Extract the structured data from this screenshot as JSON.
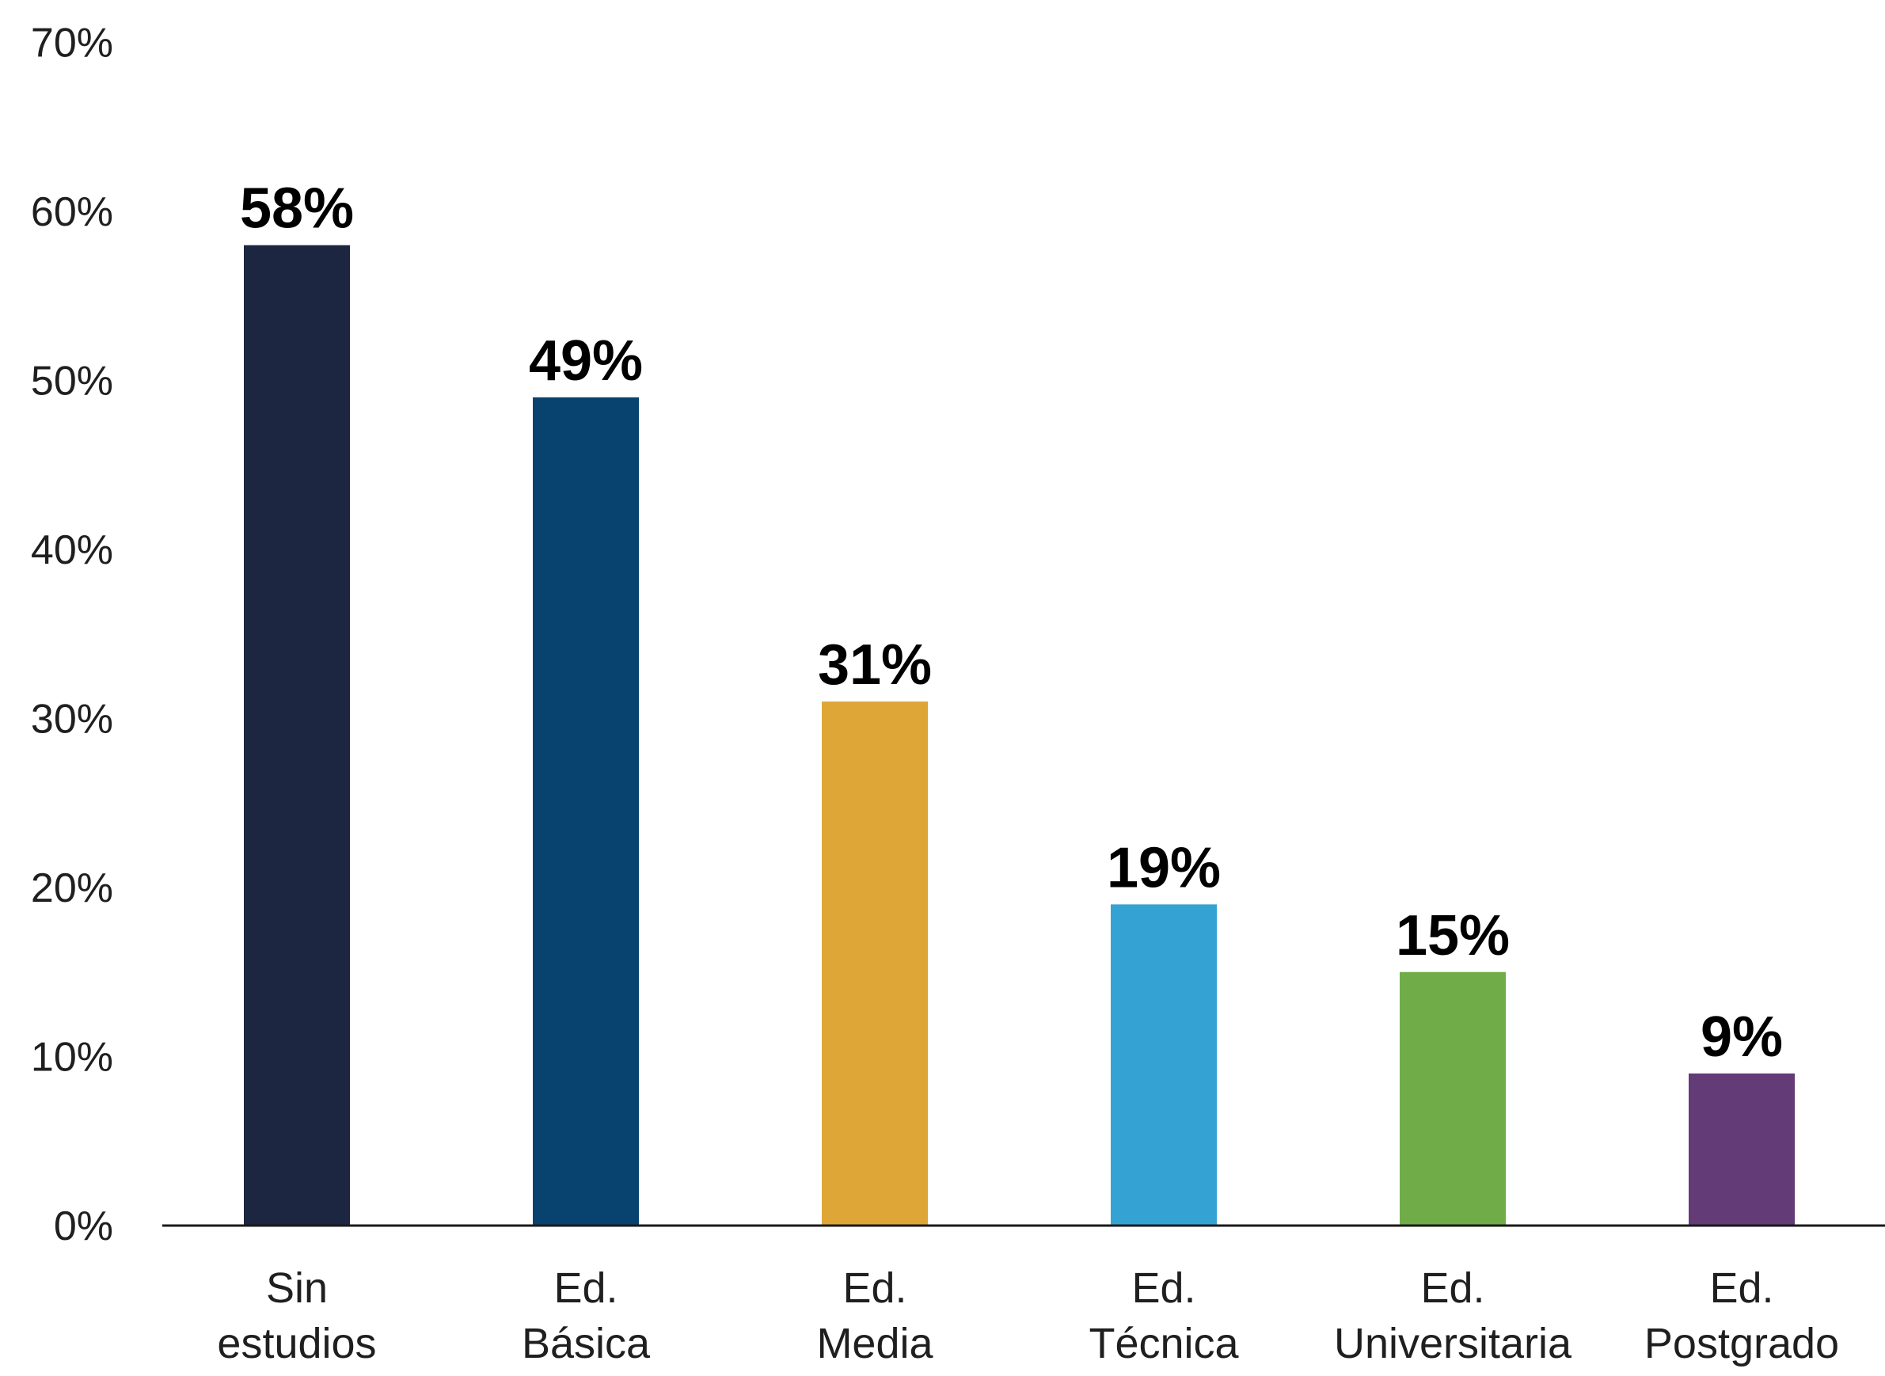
{
  "chart_data": {
    "type": "bar",
    "title": "",
    "xlabel": "",
    "ylabel": "",
    "ylim": [
      0,
      70
    ],
    "yticks": [
      0,
      10,
      20,
      30,
      40,
      50,
      60,
      70
    ],
    "ytick_labels": [
      "0%",
      "10%",
      "20%",
      "30%",
      "40%",
      "50%",
      "60%",
      "70%"
    ],
    "grid": false,
    "legend": "none",
    "categories": [
      [
        "Sin",
        "estudios"
      ],
      [
        "Ed.",
        "Básica"
      ],
      [
        "Ed.",
        "Media"
      ],
      [
        "Ed.",
        "Técnica"
      ],
      [
        "Ed.",
        "Universitaria"
      ],
      [
        "Ed.",
        "Postgrado"
      ]
    ],
    "values": [
      58,
      49,
      31,
      19,
      15,
      9
    ],
    "value_labels": [
      "58%",
      "49%",
      "31%",
      "19%",
      "15%",
      "9%"
    ],
    "colors": [
      "#1c2640",
      "#08426e",
      "#dea537",
      "#35a2d4",
      "#70ac48",
      "#633c77"
    ]
  }
}
